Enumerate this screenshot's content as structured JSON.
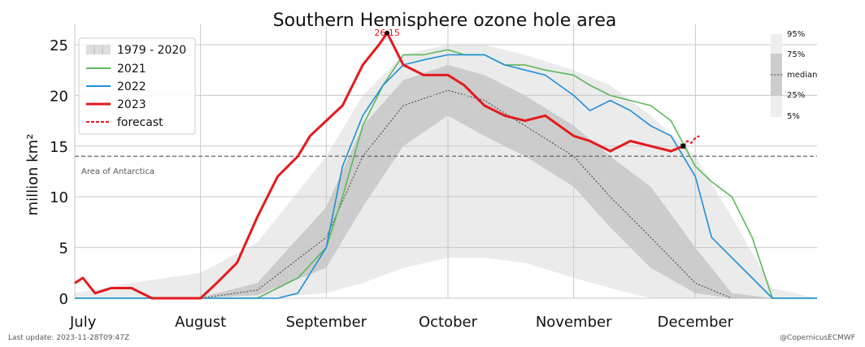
{
  "chart_data": {
    "type": "area",
    "title": "Southern Hemisphere ozone hole area",
    "ylabel": "million km²",
    "ylim": [
      0,
      27
    ],
    "y_ticks": [
      0,
      5,
      10,
      15,
      20,
      25
    ],
    "x_range": [
      "2023-07-01",
      "2023-12-31"
    ],
    "x_ticks": [
      {
        "date": "2023-07-01",
        "label": "July"
      },
      {
        "date": "2023-08-01",
        "label": "August"
      },
      {
        "date": "2023-09-01",
        "label": "September"
      },
      {
        "date": "2023-10-01",
        "label": "October"
      },
      {
        "date": "2023-11-01",
        "label": "November"
      },
      {
        "date": "2023-12-01",
        "label": "December"
      }
    ],
    "grid": true,
    "legend_position": "top-left",
    "reference_line": {
      "value": 14,
      "label": "Area of Antarctica",
      "color": "#666666"
    },
    "peak_annotation": {
      "date": "2023-09-16",
      "value": 26.15,
      "label": "26.15",
      "color": "#e41a1c"
    },
    "climatology": {
      "name": "1979 - 2020",
      "band_labels": [
        "95%",
        "75%",
        "median",
        "25%",
        "5%"
      ],
      "x": [
        "2023-07-01",
        "2023-07-15",
        "2023-08-01",
        "2023-08-15",
        "2023-09-01",
        "2023-09-10",
        "2023-09-20",
        "2023-10-01",
        "2023-10-10",
        "2023-10-20",
        "2023-11-01",
        "2023-11-10",
        "2023-11-20",
        "2023-12-01",
        "2023-12-10",
        "2023-12-20",
        "2023-12-31"
      ],
      "p5": [
        0,
        0,
        0,
        0,
        0.5,
        1.5,
        3,
        4,
        4,
        3.5,
        2,
        1,
        0,
        0,
        0,
        0,
        0
      ],
      "p25": [
        0,
        0,
        0,
        0.3,
        3,
        9,
        15,
        18,
        16,
        14,
        11,
        7,
        3,
        0.5,
        0,
        0,
        0
      ],
      "median": [
        0,
        0,
        0,
        0.8,
        6,
        14,
        19,
        20.5,
        19.5,
        17,
        14,
        10,
        6,
        1.5,
        0,
        0,
        0
      ],
      "p75": [
        0,
        0,
        0.1,
        1.5,
        9,
        17,
        21.5,
        23,
        22,
        20,
        17,
        14,
        11,
        5,
        0.5,
        0,
        0
      ],
      "p95": [
        0.5,
        1.5,
        2.5,
        5.5,
        14,
        20,
        24,
        25,
        25,
        24,
        22.5,
        21,
        18,
        14,
        8,
        1,
        0
      ]
    },
    "series": [
      {
        "name": "2021",
        "color": "#5cb85c",
        "x": [
          "2023-07-01",
          "2023-08-01",
          "2023-08-15",
          "2023-08-25",
          "2023-09-01",
          "2023-09-05",
          "2023-09-10",
          "2023-09-15",
          "2023-09-20",
          "2023-09-25",
          "2023-10-01",
          "2023-10-05",
          "2023-10-10",
          "2023-10-15",
          "2023-10-20",
          "2023-10-25",
          "2023-11-01",
          "2023-11-05",
          "2023-11-10",
          "2023-11-15",
          "2023-11-20",
          "2023-11-25",
          "2023-12-01",
          "2023-12-05",
          "2023-12-10",
          "2023-12-15",
          "2023-12-20",
          "2023-12-31"
        ],
        "values": [
          0,
          0,
          0,
          2,
          5,
          10,
          17,
          21,
          24,
          24,
          24.5,
          24,
          24,
          23,
          23,
          22.5,
          22,
          21,
          20,
          19.5,
          19,
          17.5,
          13,
          11.5,
          10,
          6,
          0,
          0
        ]
      },
      {
        "name": "2022",
        "color": "#1f8fdc",
        "x": [
          "2023-07-01",
          "2023-08-20",
          "2023-08-25",
          "2023-09-01",
          "2023-09-05",
          "2023-09-10",
          "2023-09-15",
          "2023-09-20",
          "2023-09-25",
          "2023-10-01",
          "2023-10-05",
          "2023-10-10",
          "2023-10-15",
          "2023-10-20",
          "2023-10-25",
          "2023-11-01",
          "2023-11-05",
          "2023-11-10",
          "2023-11-15",
          "2023-11-20",
          "2023-11-25",
          "2023-12-01",
          "2023-12-05",
          "2023-12-10",
          "2023-12-15",
          "2023-12-20",
          "2023-12-31"
        ],
        "values": [
          0,
          0,
          0.5,
          5,
          13,
          18,
          21,
          23,
          23.5,
          24,
          24,
          24,
          23,
          22.5,
          22,
          20,
          18.5,
          19.5,
          18.5,
          17,
          16,
          12,
          6,
          4,
          2,
          0,
          0
        ]
      },
      {
        "name": "2023",
        "color": "#e41a1c",
        "x": [
          "2023-07-01",
          "2023-07-03",
          "2023-07-06",
          "2023-07-10",
          "2023-07-15",
          "2023-07-20",
          "2023-07-25",
          "2023-08-01",
          "2023-08-05",
          "2023-08-10",
          "2023-08-15",
          "2023-08-20",
          "2023-08-25",
          "2023-08-28",
          "2023-09-01",
          "2023-09-05",
          "2023-09-10",
          "2023-09-14",
          "2023-09-16",
          "2023-09-20",
          "2023-09-25",
          "2023-10-01",
          "2023-10-05",
          "2023-10-10",
          "2023-10-15",
          "2023-10-20",
          "2023-10-25",
          "2023-11-01",
          "2023-11-05",
          "2023-11-10",
          "2023-11-15",
          "2023-11-20",
          "2023-11-25",
          "2023-11-28"
        ],
        "values": [
          1.5,
          2,
          0.5,
          1,
          1,
          0,
          0,
          0,
          1.5,
          3.5,
          8,
          12,
          14,
          16,
          17.5,
          19,
          23,
          25,
          26.15,
          23,
          22,
          22,
          21,
          19,
          18,
          17.5,
          18,
          16,
          15.5,
          14.5,
          15.5,
          15,
          14.5,
          15
        ]
      },
      {
        "name": "forecast",
        "color": "#e41a1c",
        "dashed": true,
        "x": [
          "2023-11-28",
          "2023-11-29",
          "2023-11-30",
          "2023-12-01",
          "2023-12-02"
        ],
        "values": [
          15,
          15.5,
          15.3,
          15.8,
          16
        ]
      }
    ]
  },
  "footer": {
    "last_update": "Last update: 2023-11-28T09:47Z",
    "credit": "@CopernicusECMWF"
  }
}
